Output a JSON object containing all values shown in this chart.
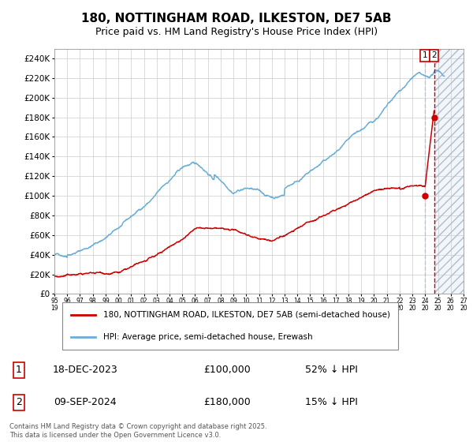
{
  "title": "180, NOTTINGHAM ROAD, ILKESTON, DE7 5AB",
  "subtitle": "Price paid vs. HM Land Registry's House Price Index (HPI)",
  "ylim": [
    0,
    250000
  ],
  "yticks": [
    0,
    20000,
    40000,
    60000,
    80000,
    100000,
    120000,
    140000,
    160000,
    180000,
    200000,
    220000,
    240000
  ],
  "xlim_start": 1995.0,
  "xlim_end": 2027.0,
  "hpi_color": "#6baed6",
  "price_color": "#cc0000",
  "dashed_line_color": "#cc0000",
  "vline1_color": "#aac4e0",
  "vline2_color": "#cc0000",
  "annotation_box_color": "#cc0000",
  "hatch_fill_color": "#dce8f2",
  "hatch_edge_color": "#aabfcf",
  "legend_label_red": "180, NOTTINGHAM ROAD, ILKESTON, DE7 5AB (semi-detached house)",
  "legend_label_blue": "HPI: Average price, semi-detached house, Erewash",
  "transaction1_label": "1",
  "transaction1_date": "18-DEC-2023",
  "transaction1_price": "£100,000",
  "transaction1_note": "52% ↓ HPI",
  "transaction2_label": "2",
  "transaction2_date": "09-SEP-2024",
  "transaction2_price": "£180,000",
  "transaction2_note": "15% ↓ HPI",
  "footer": "Contains HM Land Registry data © Crown copyright and database right 2025.\nThis data is licensed under the Open Government Licence v3.0.",
  "marker1_x": 2023.96,
  "marker1_y": 100000,
  "marker2_x": 2024.69,
  "marker2_y": 180000,
  "vline1_x": 2023.96,
  "vline2_x": 2024.69,
  "hatch_start": 2024.69,
  "background_color": "#ffffff",
  "grid_color": "#cccccc",
  "title_fontsize": 11,
  "subtitle_fontsize": 9,
  "axis_fontsize": 7.5,
  "legend_fontsize": 7.5,
  "table_fontsize": 9,
  "footer_fontsize": 6
}
